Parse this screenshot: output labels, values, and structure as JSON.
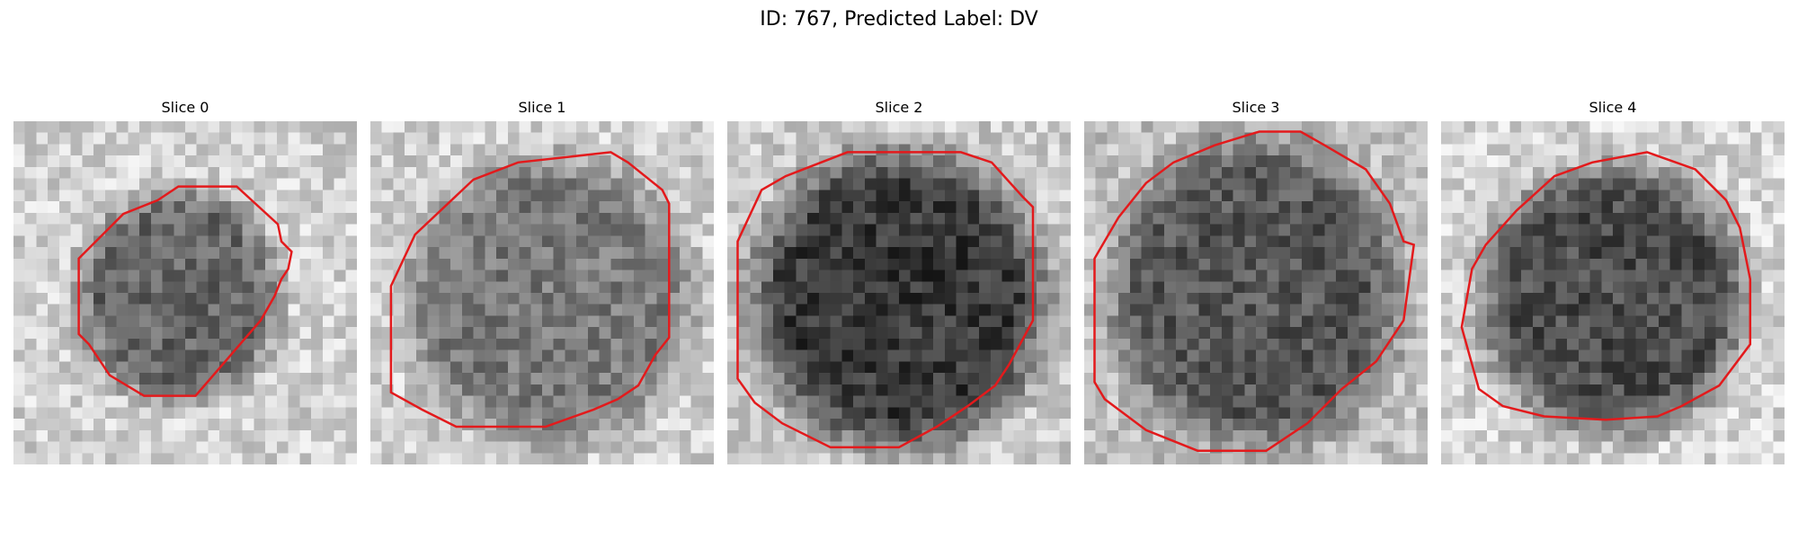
{
  "title": "ID: 767, Predicted Label: DV",
  "contour_color": "#e31a1c",
  "slices": [
    {
      "label": "Slice 0"
    },
    {
      "label": "Slice 1"
    },
    {
      "label": "Slice 2"
    },
    {
      "label": "Slice 3"
    },
    {
      "label": "Slice 4"
    }
  ]
}
